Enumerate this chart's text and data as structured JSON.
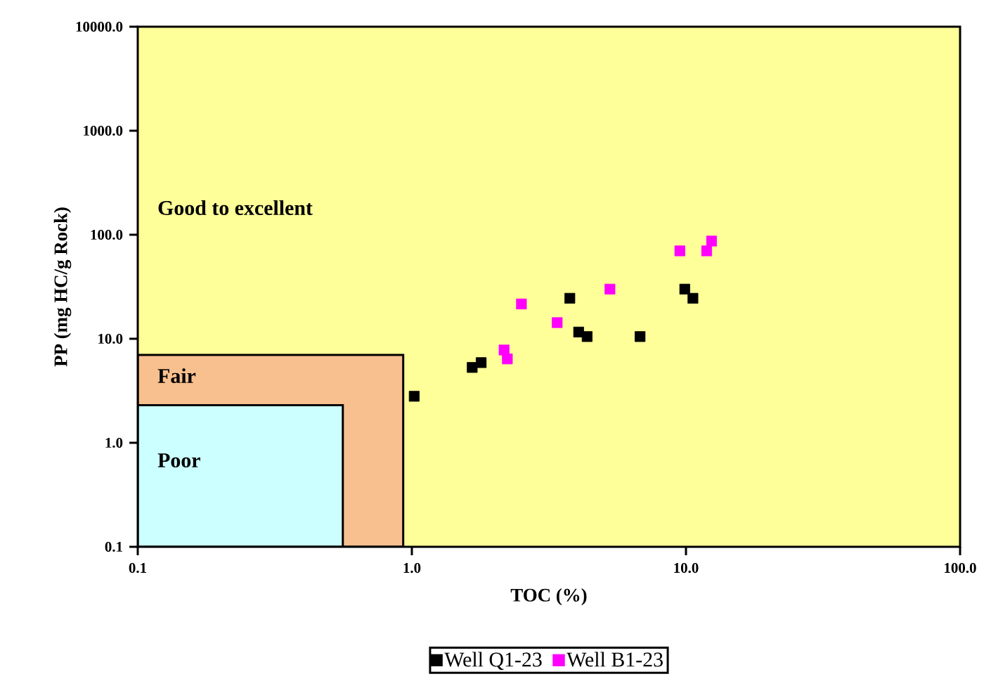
{
  "chart_data": {
    "type": "scatter",
    "xlabel": "TOC (%)",
    "ylabel": "PP (mg HC/g Rock)",
    "log": "xy",
    "legend": "bottom",
    "xlim": [
      0.1,
      100
    ],
    "ylim": [
      0.1,
      10000
    ],
    "xticks": [
      {
        "value": 0.1,
        "label": "0.1"
      },
      {
        "value": 1,
        "label": "1.0"
      },
      {
        "value": 10,
        "label": "10.0"
      },
      {
        "value": 100,
        "label": "100.0"
      }
    ],
    "yticks": [
      {
        "value": 0.1,
        "label": "0.1"
      },
      {
        "value": 1,
        "label": "1.0"
      },
      {
        "value": 10,
        "label": "10.0"
      },
      {
        "value": 100,
        "label": "100.0"
      },
      {
        "value": 1000,
        "label": "1000.0"
      },
      {
        "value": 10000,
        "label": "10000.0"
      }
    ],
    "series": [
      {
        "type": "area",
        "color": "#f9c08f",
        "x": [
          0.1,
          0.93
        ],
        "values": [
          7,
          7
        ]
      },
      {
        "type": "area",
        "color": "#ccffff",
        "x": [
          0.1,
          0.56
        ],
        "values": [
          2.3,
          2.3
        ]
      },
      {
        "name": "Well Q1-23",
        "marker": "square",
        "color": "#000000",
        "x": [
          1.02,
          1.66,
          1.79,
          3.77,
          4.06,
          4.36,
          6.8,
          9.9,
          10.6
        ],
        "values": [
          2.8,
          5.3,
          5.9,
          24.5,
          11.6,
          10.5,
          10.5,
          30,
          24.5
        ]
      },
      {
        "name": "Well B1-23",
        "marker": "square",
        "color": "#ff00ff",
        "x": [
          2.51,
          3.39,
          2.17,
          2.23,
          5.28,
          9.5,
          11.9,
          12.4
        ],
        "values": [
          21.6,
          14.3,
          7.8,
          6.4,
          30,
          70,
          70,
          87
        ]
      }
    ],
    "annotations": [
      "Good to excellent",
      "Fair",
      "Poor"
    ]
  }
}
